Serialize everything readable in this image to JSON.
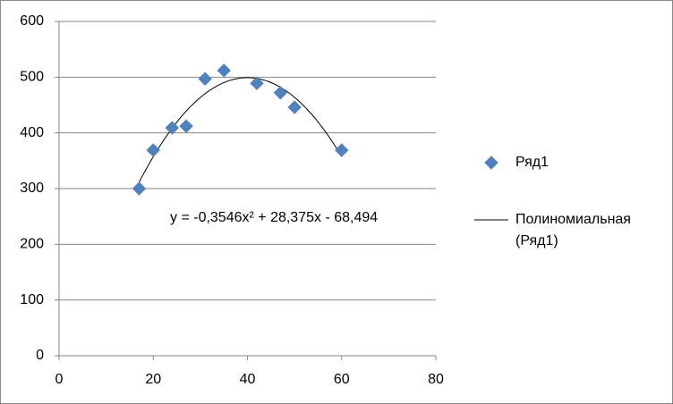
{
  "chart_data": {
    "type": "scatter",
    "series": [
      {
        "name": "Ряд1",
        "color": "#4f81bd",
        "x": [
          17,
          20,
          24,
          27,
          31,
          35,
          42,
          47,
          50,
          60
        ],
        "values": [
          300,
          369,
          409,
          412,
          497,
          512,
          489,
          472,
          446,
          369
        ]
      }
    ],
    "trendline": {
      "name": "Полиномиальная (Ряд1)",
      "color": "#000000",
      "equation": "y = -0,3546x² + 28,375x - 68,494",
      "coefficients": [
        -0.3546,
        28.375,
        -68.494
      ]
    },
    "xlim": [
      0,
      80
    ],
    "xticks": [
      0,
      20,
      40,
      60,
      80
    ],
    "ylim": [
      0,
      600
    ],
    "yticks": [
      0,
      100,
      200,
      300,
      400,
      500,
      600
    ],
    "grid": true,
    "legend": "right"
  }
}
